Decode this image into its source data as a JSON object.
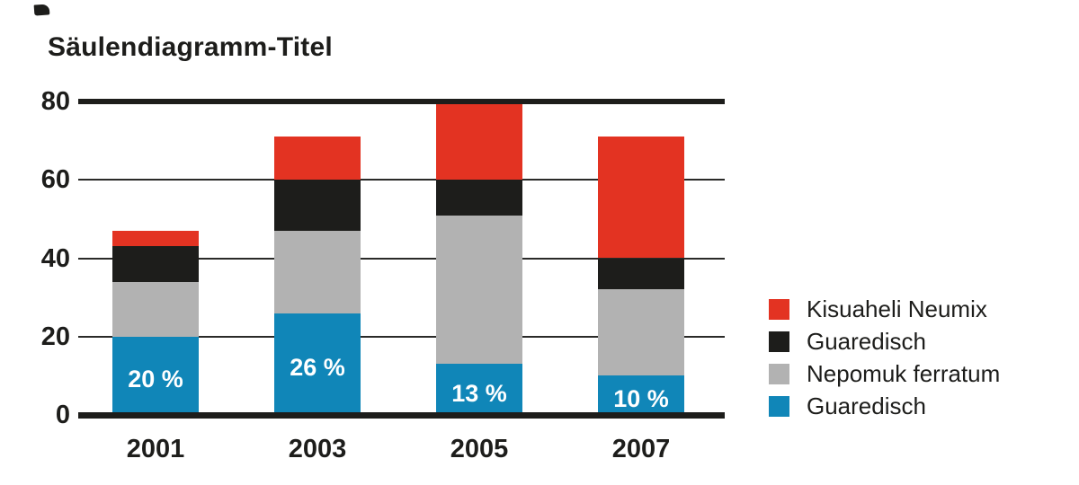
{
  "chart_data": {
    "type": "bar",
    "stacked": true,
    "title": "Säulendiagramm-Titel",
    "categories": [
      "2001",
      "2003",
      "2005",
      "2007"
    ],
    "series": [
      {
        "name": "Guaredisch",
        "color": "#1086b8",
        "values": [
          20,
          26,
          13,
          10
        ],
        "labels": [
          "20 %",
          "26 %",
          "13 %",
          "10 %"
        ]
      },
      {
        "name": "Nepomuk ferratum",
        "color": "#b2b2b2",
        "values": [
          14,
          21,
          38,
          22
        ]
      },
      {
        "name": "Guaredisch",
        "color": "#1d1d1b",
        "values": [
          9,
          13,
          9,
          8
        ]
      },
      {
        "name": "Kisuaheli Neumix",
        "color": "#e33322",
        "values": [
          4,
          11,
          20,
          31
        ]
      }
    ],
    "totals": [
      47,
      71,
      80,
      71
    ],
    "y_axis": {
      "ticks": [
        0,
        20,
        40,
        60,
        80
      ],
      "max": 80,
      "thick_lines": [
        0,
        80
      ]
    },
    "grid": true,
    "legend_position": "right",
    "legend": [
      {
        "label": "Kisuaheli Neumix",
        "color": "#e33322"
      },
      {
        "label": "Guaredisch",
        "color": "#1d1d1b"
      },
      {
        "label": "Nepomuk ferratum",
        "color": "#b2b2b2"
      },
      {
        "label": "Guaredisch",
        "color": "#1086b8"
      }
    ],
    "ink_color": "#1d1d1b",
    "value_label_color": "#ffffff"
  }
}
